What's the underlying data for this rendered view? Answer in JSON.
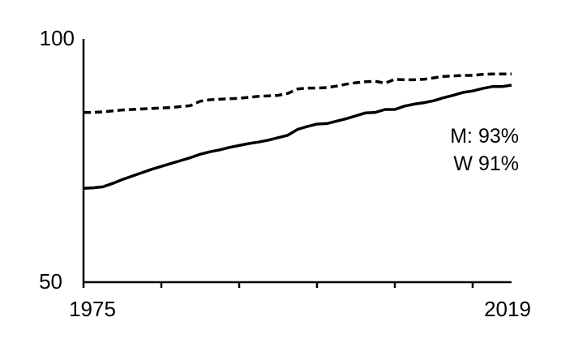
{
  "chart_data": {
    "type": "line",
    "title": "",
    "xlabel": "",
    "ylabel": "",
    "xlim": [
      1975,
      2019
    ],
    "ylim": [
      50,
      100
    ],
    "grid": false,
    "x_tick_labels": [
      "1975",
      "2019"
    ],
    "y_tick_labels": [
      "100",
      "50"
    ],
    "annotations": [
      "M: 93%",
      "W 91%"
    ],
    "x": [
      1975,
      1976,
      1977,
      1978,
      1979,
      1980,
      1981,
      1982,
      1983,
      1984,
      1985,
      1986,
      1987,
      1988,
      1989,
      1990,
      1991,
      1992,
      1993,
      1994,
      1995,
      1996,
      1997,
      1998,
      1999,
      2000,
      2001,
      2002,
      2003,
      2004,
      2005,
      2006,
      2007,
      2008,
      2009,
      2010,
      2011,
      2012,
      2013,
      2014,
      2015,
      2016,
      2017,
      2018,
      2019
    ],
    "series": [
      {
        "style": "dashed",
        "color": "#000000",
        "values": [
          84.9,
          84.9,
          85.0,
          85.2,
          85.4,
          85.5,
          85.6,
          85.7,
          85.8,
          85.9,
          86.1,
          86.3,
          87.2,
          87.5,
          87.6,
          87.7,
          87.8,
          88.0,
          88.2,
          88.3,
          88.4,
          88.8,
          89.7,
          89.9,
          89.9,
          90.0,
          90.3,
          90.7,
          91.0,
          91.2,
          91.3,
          90.9,
          91.7,
          91.6,
          91.6,
          91.7,
          92.0,
          92.3,
          92.4,
          92.5,
          92.5,
          92.7,
          92.8,
          92.8,
          92.8
        ]
      },
      {
        "style": "solid",
        "color": "#000000",
        "values": [
          69.3,
          69.4,
          69.6,
          70.3,
          71.1,
          71.8,
          72.5,
          73.2,
          73.8,
          74.4,
          75.0,
          75.6,
          76.3,
          76.8,
          77.2,
          77.7,
          78.1,
          78.5,
          78.8,
          79.2,
          79.7,
          80.2,
          81.4,
          82.0,
          82.5,
          82.6,
          83.1,
          83.6,
          84.2,
          84.8,
          84.9,
          85.5,
          85.5,
          86.2,
          86.6,
          86.9,
          87.3,
          87.9,
          88.4,
          89.0,
          89.3,
          89.8,
          90.2,
          90.2,
          90.5
        ]
      }
    ]
  }
}
